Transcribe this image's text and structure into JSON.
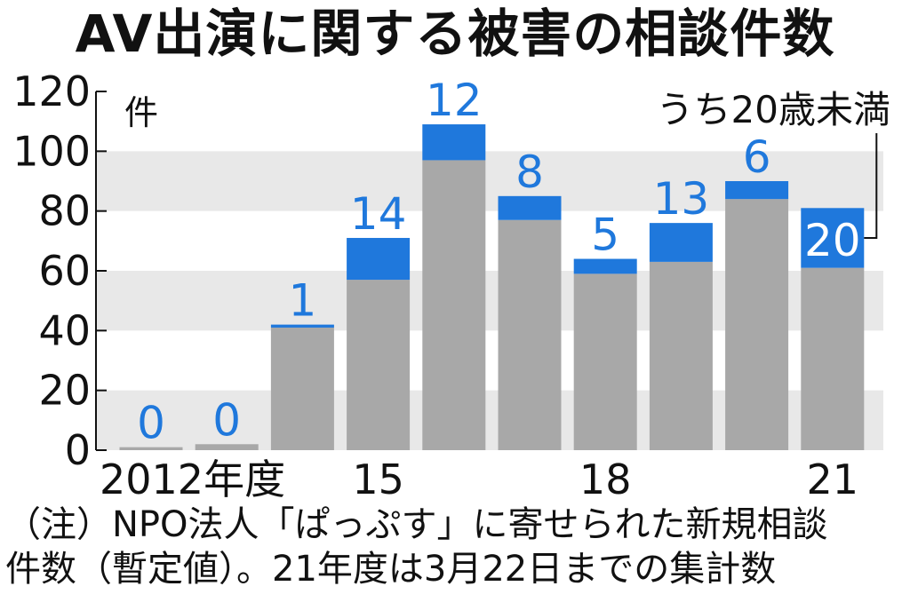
{
  "title": "AV出演に関する被害の相談件数",
  "note": {
    "line1": "（注）NPO法人「ぱっぷす」に寄せられた新規相談",
    "line2": "件数（暫定値）。21年度は3月22日までの集計数"
  },
  "colors": {
    "base_bar": "#a8a8a8",
    "under20_bar": "#1f78dc",
    "under20_label": "#1f78dc",
    "band": "#e8e8e8",
    "text": "#111111"
  },
  "chart_data": {
    "type": "bar",
    "stacked": true,
    "title": "AV出演に関する被害の相談件数",
    "ylabel": "件",
    "ylim": [
      0,
      120
    ],
    "yticks": [
      "0",
      "20",
      "40",
      "60",
      "80",
      "100",
      "120"
    ],
    "x_tick_labels": [
      {
        "index": 0,
        "text": "2012年度"
      },
      {
        "index": 3,
        "text": "15"
      },
      {
        "index": 6,
        "text": "18"
      },
      {
        "index": 9,
        "text": "21"
      }
    ],
    "categories": [
      "2012",
      "2013",
      "2014",
      "2015",
      "2016",
      "2017",
      "2018",
      "2019",
      "2020",
      "2021"
    ],
    "series": [
      {
        "name": "",
        "values": [
          1,
          2,
          41,
          57,
          97,
          77,
          59,
          63,
          84,
          61
        ]
      },
      {
        "name": "うち20歳未満",
        "values": [
          0,
          0,
          1,
          14,
          12,
          8,
          5,
          13,
          6,
          20
        ]
      }
    ],
    "data_labels": [
      "0",
      "0",
      "1",
      "14",
      "12",
      "8",
      "5",
      "13",
      "6",
      "20"
    ],
    "legend": {
      "text": "うち20歳未満",
      "placement": "top-right"
    },
    "grid": "alternating horizontal bands"
  }
}
